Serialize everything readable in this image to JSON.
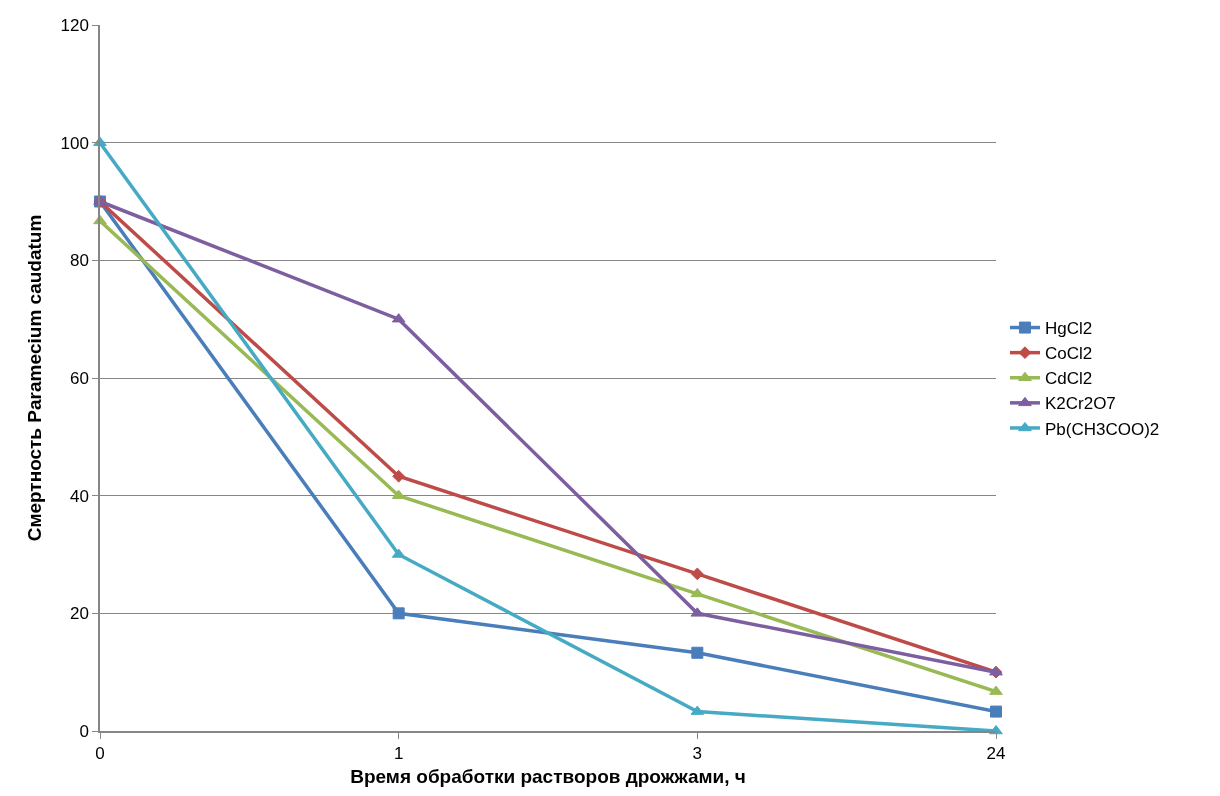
{
  "chart_data": {
    "type": "line",
    "xlabel": "Время обработки растворов дрожжами, ч",
    "ylabel": "Смертность Paramecium caudatum",
    "categories": [
      "0",
      "1",
      "3",
      "24"
    ],
    "series": [
      {
        "name": "HgCl2",
        "color": "#4a7ebb",
        "marker": "square",
        "values": [
          90,
          20,
          13.3,
          3.3
        ]
      },
      {
        "name": "CoCl2",
        "color": "#be4b48",
        "marker": "diamond",
        "values": [
          90,
          43.3,
          26.7,
          10
        ]
      },
      {
        "name": "CdCl2",
        "color": "#98b954",
        "marker": "triangle",
        "values": [
          86.7,
          40,
          23.3,
          6.7
        ]
      },
      {
        "name": "K2Cr2O7",
        "color": "#7d5fa0",
        "marker": "triangle",
        "values": [
          90,
          70,
          20,
          10
        ]
      },
      {
        "name": "Pb(CH3COO)2",
        "color": "#46aac5",
        "marker": "triangle",
        "values": [
          100,
          30,
          3.3,
          0
        ]
      }
    ],
    "ylim": [
      0,
      120
    ],
    "yticks": [
      0,
      20,
      40,
      60,
      80,
      100,
      120
    ],
    "grid": "y",
    "legend": "right",
    "line_style": "solid"
  }
}
